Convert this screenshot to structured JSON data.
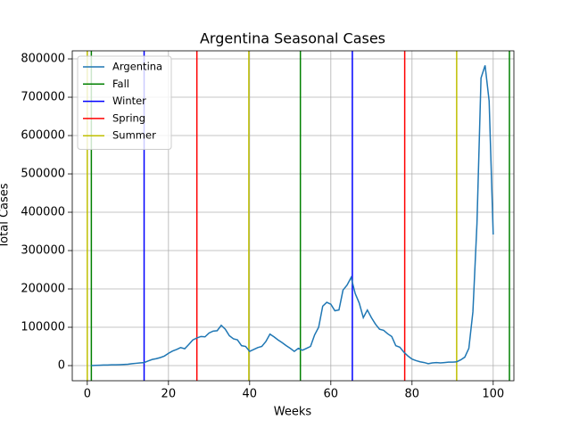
{
  "chart_data": {
    "type": "line",
    "title": "Argentina Seasonal Cases",
    "x_label": "Weeks",
    "y_label": "Total Cases",
    "x": [
      1,
      2,
      3,
      4,
      5,
      6,
      7,
      8,
      9,
      10,
      11,
      12,
      13,
      14,
      15,
      16,
      17,
      18,
      19,
      20,
      21,
      22,
      23,
      24,
      25,
      26,
      27,
      28,
      29,
      30,
      31,
      32,
      33,
      34,
      35,
      36,
      37,
      38,
      39,
      40,
      41,
      42,
      43,
      44,
      45,
      46,
      47,
      48,
      49,
      50,
      51,
      52,
      53,
      54,
      55,
      56,
      57,
      58,
      59,
      60,
      61,
      62,
      63,
      64,
      65,
      66,
      67,
      68,
      69,
      70,
      71,
      72,
      73,
      74,
      75,
      76,
      77,
      78,
      79,
      80,
      81,
      82,
      83,
      84,
      85,
      86,
      87,
      88,
      89,
      90,
      91,
      92,
      93,
      94,
      95,
      96,
      97,
      98,
      99,
      100
    ],
    "series": [
      {
        "name": "Argentina",
        "color": "#1f77b4",
        "values": [
          0,
          500,
          1000,
          1500,
          1500,
          2000,
          2000,
          2500,
          3000,
          3500,
          5000,
          6000,
          7000,
          8000,
          12000,
          16000,
          18000,
          21000,
          25000,
          32000,
          38000,
          42000,
          47000,
          44000,
          55000,
          67000,
          72000,
          76000,
          75000,
          85000,
          90000,
          91000,
          105000,
          95000,
          78000,
          70000,
          67000,
          52000,
          50000,
          37000,
          42000,
          47000,
          50000,
          63000,
          82000,
          75000,
          67000,
          60000,
          52000,
          45000,
          37000,
          45000,
          40000,
          45000,
          50000,
          80000,
          100000,
          155000,
          165000,
          160000,
          143000,
          145000,
          197000,
          210000,
          230000,
          188000,
          163000,
          125000,
          145000,
          125000,
          108000,
          95000,
          92000,
          83000,
          76000,
          52000,
          48000,
          35000,
          25000,
          17000,
          13000,
          10000,
          8000,
          5000,
          7000,
          8000,
          7000,
          8000,
          9000,
          9000,
          10000,
          15000,
          22000,
          45000,
          140000,
          370000,
          750000,
          783000,
          690000,
          342000
        ]
      }
    ],
    "vlines": [
      {
        "name": "Fall",
        "color": "#008000",
        "x": [
          1,
          52.5,
          104
        ]
      },
      {
        "name": "Winter",
        "color": "#0000ff",
        "x": [
          14,
          65.3
        ]
      },
      {
        "name": "Spring",
        "color": "#ff0000",
        "x": [
          27,
          78.2
        ]
      },
      {
        "name": "Summer",
        "color": "#bfbf00",
        "x": [
          0,
          39.8,
          91
        ]
      }
    ],
    "xlim": [
      -3.7,
      105.1
    ],
    "ylim": [
      -39500,
      821000
    ],
    "xticks": [
      0,
      20,
      40,
      60,
      80,
      100
    ],
    "yticks": [
      0,
      100000,
      200000,
      300000,
      400000,
      500000,
      600000,
      700000,
      800000
    ],
    "grid": true,
    "legend": "upper left"
  }
}
